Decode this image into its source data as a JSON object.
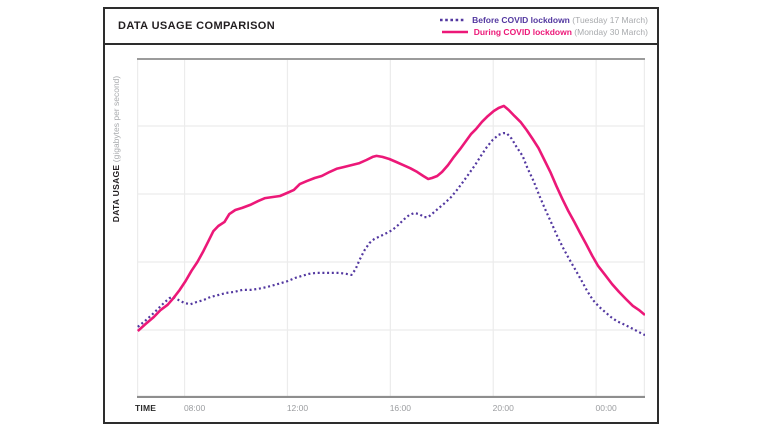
{
  "header": {
    "title": "DATA USAGE COMPARISON",
    "legend": [
      {
        "label": "Before COVID lockdown",
        "date": "(Tuesday 17 March)",
        "color": "#5338A0",
        "style": "dotted"
      },
      {
        "label": "During COVID lockdown",
        "date": "(Monday 30 March)",
        "color": "#EC1878",
        "style": "solid"
      }
    ]
  },
  "axes": {
    "x_label": "TIME",
    "y_label_bold": "DATA USAGE",
    "y_label_unit": "(gigabytes per second)"
  },
  "colors": {
    "grid": "#ececec",
    "axis_top": "#9b9b9b",
    "axis_bottom": "#8e8e8e",
    "tick_text": "#9b9da0",
    "card_border": "#2d2d2d",
    "before_series": "#5338A0",
    "during_series": "#EC1878"
  },
  "chart_data": {
    "type": "line",
    "title": "DATA USAGE COMPARISON",
    "xlabel": "TIME",
    "ylabel": "DATA USAGE (gigabytes per second)",
    "x_unit": "hour of day (decimal, 24 = midnight, >24 = after midnight)",
    "y_unit": "relative data usage, 0-100 of plot height (no numeric scale printed)",
    "x_domain": [
      6.15,
      25.9
    ],
    "y_domain": [
      0,
      100
    ],
    "grid": true,
    "legend_position": "top-right",
    "x_ticks": [
      {
        "t": 8,
        "label": "08:00"
      },
      {
        "t": 12,
        "label": "12:00"
      },
      {
        "t": 16,
        "label": "16:00"
      },
      {
        "t": 20,
        "label": "20:00"
      },
      {
        "t": 24,
        "label": "00:00"
      }
    ],
    "grid_h_values": [
      20,
      40,
      60,
      80
    ],
    "series": [
      {
        "name": "Before COVID lockdown (Tuesday 17 March)",
        "color": "#5338A0",
        "dash": "dotted",
        "points": [
          [
            6.18,
            20.9
          ],
          [
            6.45,
            22.6
          ],
          [
            6.72,
            24.4
          ],
          [
            7.0,
            26.5
          ],
          [
            7.23,
            28.2
          ],
          [
            7.42,
            29.4
          ],
          [
            7.57,
            29.7
          ],
          [
            7.77,
            28.8
          ],
          [
            8.0,
            27.9
          ],
          [
            8.23,
            27.6
          ],
          [
            8.46,
            28.2
          ],
          [
            8.73,
            28.8
          ],
          [
            9.0,
            29.7
          ],
          [
            9.31,
            30.3
          ],
          [
            9.62,
            30.9
          ],
          [
            9.93,
            31.2
          ],
          [
            10.24,
            31.8
          ],
          [
            10.55,
            31.8
          ],
          [
            10.86,
            32.1
          ],
          [
            11.17,
            32.6
          ],
          [
            11.48,
            33.2
          ],
          [
            11.75,
            33.8
          ],
          [
            12.02,
            34.4
          ],
          [
            12.29,
            35.3
          ],
          [
            12.56,
            35.9
          ],
          [
            12.83,
            36.5
          ],
          [
            13.1,
            36.8
          ],
          [
            13.41,
            36.8
          ],
          [
            13.72,
            36.8
          ],
          [
            14.03,
            36.8
          ],
          [
            14.3,
            36.5
          ],
          [
            14.49,
            36.2
          ],
          [
            14.65,
            37.9
          ],
          [
            14.8,
            40.6
          ],
          [
            15.0,
            43.5
          ],
          [
            15.19,
            45.6
          ],
          [
            15.38,
            46.8
          ],
          [
            15.61,
            47.6
          ],
          [
            15.85,
            48.5
          ],
          [
            16.08,
            49.4
          ],
          [
            16.31,
            50.9
          ],
          [
            16.54,
            52.6
          ],
          [
            16.73,
            53.8
          ],
          [
            16.93,
            54.4
          ],
          [
            17.12,
            54.1
          ],
          [
            17.31,
            53.2
          ],
          [
            17.47,
            53.2
          ],
          [
            17.66,
            54.4
          ],
          [
            17.89,
            55.9
          ],
          [
            18.13,
            57.4
          ],
          [
            18.36,
            59.1
          ],
          [
            18.59,
            61.2
          ],
          [
            18.82,
            63.5
          ],
          [
            19.05,
            65.9
          ],
          [
            19.29,
            68.5
          ],
          [
            19.52,
            71.2
          ],
          [
            19.75,
            73.8
          ],
          [
            19.98,
            75.9
          ],
          [
            20.21,
            77.4
          ],
          [
            20.41,
            77.9
          ],
          [
            20.52,
            77.9
          ],
          [
            20.72,
            76.2
          ],
          [
            20.91,
            73.8
          ],
          [
            21.14,
            71.2
          ],
          [
            21.33,
            67.6
          ],
          [
            21.57,
            63.8
          ],
          [
            21.8,
            59.4
          ],
          [
            22.03,
            55.3
          ],
          [
            22.26,
            51.5
          ],
          [
            22.49,
            47.6
          ],
          [
            22.72,
            44.1
          ],
          [
            22.95,
            40.9
          ],
          [
            23.18,
            37.9
          ],
          [
            23.42,
            34.7
          ],
          [
            23.65,
            31.5
          ],
          [
            23.88,
            28.8
          ],
          [
            24.12,
            26.8
          ],
          [
            24.35,
            25.3
          ],
          [
            24.58,
            23.8
          ],
          [
            24.81,
            22.6
          ],
          [
            25.04,
            21.8
          ],
          [
            25.28,
            20.9
          ],
          [
            25.51,
            20.0
          ],
          [
            25.74,
            19.1
          ],
          [
            25.9,
            18.5
          ]
        ]
      },
      {
        "name": "During COVID lockdown (Monday 30 March)",
        "color": "#EC1878",
        "dash": "solid",
        "points": [
          [
            6.18,
            19.7
          ],
          [
            6.49,
            21.8
          ],
          [
            6.8,
            23.8
          ],
          [
            7.07,
            25.9
          ],
          [
            7.34,
            27.4
          ],
          [
            7.57,
            29.4
          ],
          [
            7.81,
            31.8
          ],
          [
            8.04,
            34.4
          ],
          [
            8.27,
            37.4
          ],
          [
            8.5,
            40.0
          ],
          [
            8.73,
            43.2
          ],
          [
            8.93,
            46.2
          ],
          [
            9.12,
            49.1
          ],
          [
            9.31,
            50.6
          ],
          [
            9.55,
            51.8
          ],
          [
            9.74,
            54.1
          ],
          [
            9.97,
            55.3
          ],
          [
            10.24,
            55.9
          ],
          [
            10.55,
            56.8
          ],
          [
            10.86,
            57.9
          ],
          [
            11.13,
            58.8
          ],
          [
            11.4,
            59.1
          ],
          [
            11.71,
            59.4
          ],
          [
            11.98,
            60.3
          ],
          [
            12.25,
            61.2
          ],
          [
            12.48,
            62.9
          ],
          [
            12.75,
            63.8
          ],
          [
            13.06,
            64.7
          ],
          [
            13.33,
            65.3
          ],
          [
            13.64,
            66.5
          ],
          [
            13.91,
            67.4
          ],
          [
            14.18,
            67.9
          ],
          [
            14.49,
            68.5
          ],
          [
            14.8,
            69.1
          ],
          [
            15.07,
            70.0
          ],
          [
            15.31,
            70.9
          ],
          [
            15.46,
            71.2
          ],
          [
            15.69,
            70.9
          ],
          [
            15.96,
            70.3
          ],
          [
            16.23,
            69.4
          ],
          [
            16.5,
            68.5
          ],
          [
            16.77,
            67.6
          ],
          [
            17.04,
            66.5
          ],
          [
            17.28,
            65.3
          ],
          [
            17.47,
            64.4
          ],
          [
            17.62,
            64.7
          ],
          [
            17.82,
            65.3
          ],
          [
            18.01,
            66.5
          ],
          [
            18.24,
            68.5
          ],
          [
            18.47,
            70.9
          ],
          [
            18.71,
            73.2
          ],
          [
            18.94,
            75.6
          ],
          [
            19.13,
            77.6
          ],
          [
            19.33,
            79.1
          ],
          [
            19.56,
            81.2
          ],
          [
            19.79,
            82.9
          ],
          [
            20.02,
            84.4
          ],
          [
            20.21,
            85.3
          ],
          [
            20.41,
            85.9
          ],
          [
            20.6,
            84.7
          ],
          [
            20.83,
            82.9
          ],
          [
            21.06,
            81.2
          ],
          [
            21.3,
            78.8
          ],
          [
            21.53,
            76.2
          ],
          [
            21.76,
            73.5
          ],
          [
            21.99,
            70.0
          ],
          [
            22.22,
            66.5
          ],
          [
            22.45,
            62.4
          ],
          [
            22.69,
            58.5
          ],
          [
            22.92,
            55.0
          ],
          [
            23.15,
            51.8
          ],
          [
            23.38,
            48.5
          ],
          [
            23.61,
            45.3
          ],
          [
            23.85,
            41.8
          ],
          [
            24.08,
            38.8
          ],
          [
            24.35,
            36.2
          ],
          [
            24.62,
            33.5
          ],
          [
            24.89,
            31.2
          ],
          [
            25.16,
            29.1
          ],
          [
            25.43,
            27.1
          ],
          [
            25.66,
            25.9
          ],
          [
            25.9,
            24.4
          ]
        ]
      }
    ]
  }
}
